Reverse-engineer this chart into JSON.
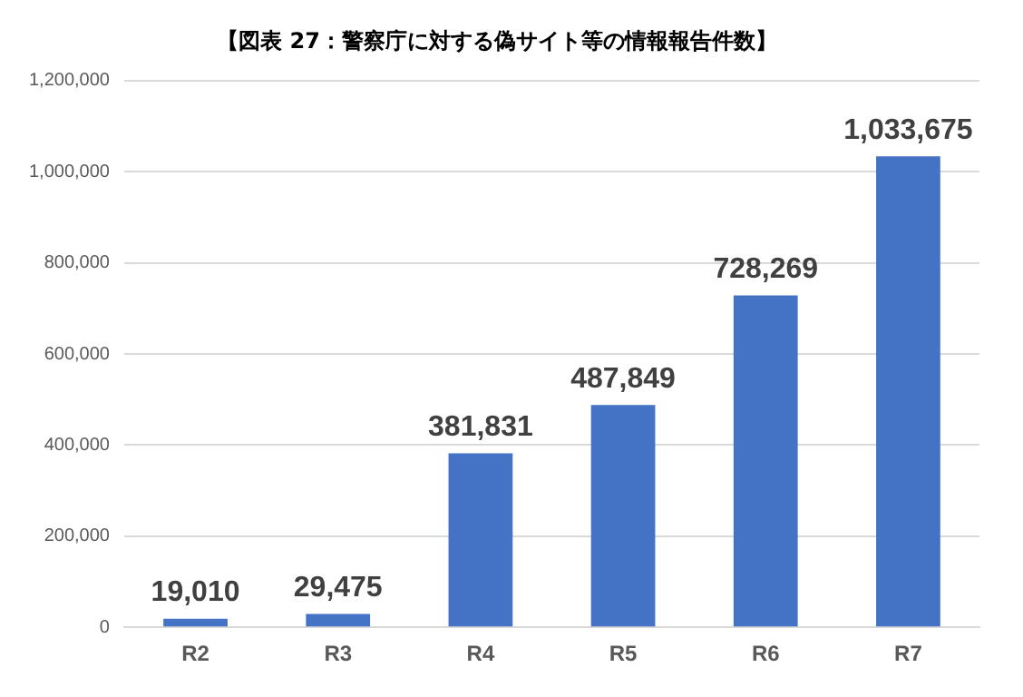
{
  "chart_data": {
    "type": "bar",
    "title": "【図表 27：警察庁に対する偽サイト等の情報報告件数】",
    "categories": [
      "R2",
      "R3",
      "R4",
      "R5",
      "R6",
      "R7"
    ],
    "values": [
      19010,
      29475,
      381831,
      487849,
      728269,
      1033675
    ],
    "value_labels": [
      "19,010",
      "29,475",
      "381,831",
      "487,849",
      "728,269",
      "1,033,675"
    ],
    "color": "#4472c4",
    "ylim": [
      0,
      1200000
    ],
    "yticks": [
      0,
      {
        "value": 200000,
        "label": "200,000"
      },
      {
        "value": 400000,
        "label": "400,000"
      },
      {
        "value": 600000,
        "label": "600,000"
      },
      {
        "value": 800000,
        "label": "800,000"
      },
      {
        "value": 1000000,
        "label": "1,000,000"
      },
      {
        "value": 1200000,
        "label": "1,200,000"
      }
    ],
    "grid": "y",
    "legend": false
  }
}
